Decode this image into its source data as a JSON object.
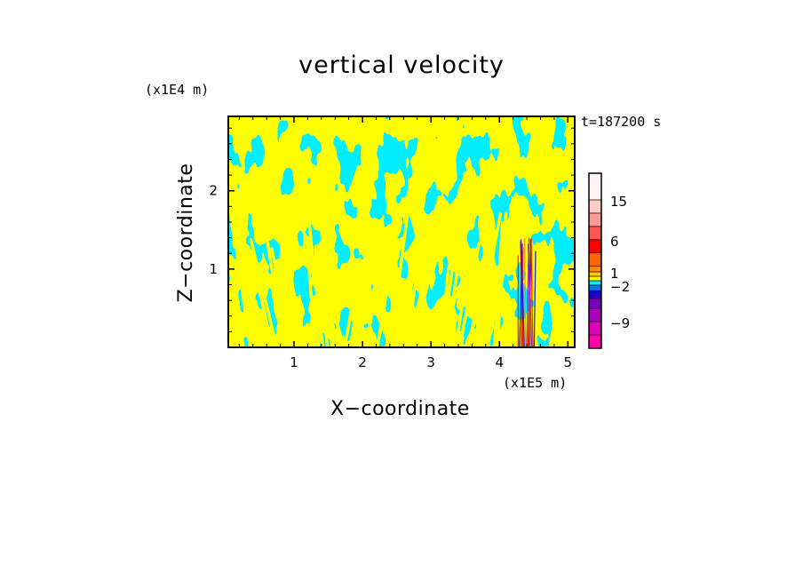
{
  "chart_data": {
    "type": "heatmap",
    "title": "vertical velocity",
    "xlabel": "X−coordinate",
    "ylabel": "Z−coordinate",
    "x_unit_label": "(x1E5 m)",
    "y_unit_label": "(x1E4 m)",
    "time_label": "t=187200 s",
    "xlim": [
      0.04,
      5.1
    ],
    "ylim": [
      0,
      2.95
    ],
    "x_ticks": [
      1,
      2,
      3,
      4,
      5
    ],
    "x_tick_labels": [
      "1",
      "2",
      "3",
      "4",
      "5"
    ],
    "y_ticks": [
      1,
      2
    ],
    "y_tick_labels": [
      "1",
      "2"
    ],
    "field_colors": {
      "positive": "#ffff00",
      "negative": "#00eeff"
    },
    "convective_core": {
      "x_center": 4.4,
      "z_top": 1.4,
      "colors": [
        "#ff0000",
        "#0000ff",
        "#ff8800",
        "#8800cc"
      ]
    },
    "colorbar": {
      "levels": [
        -12,
        -9,
        -6,
        -4,
        -3,
        -2,
        -1,
        0,
        1,
        2,
        4,
        6,
        8,
        10,
        15,
        20
      ],
      "colors": [
        "#ff00aa",
        "#dd00bb",
        "#aa00bb",
        "#7700bb",
        "#2200cc",
        "#0077ff",
        "#00eeff",
        "#ffff00",
        "#ffcc00",
        "#ff8800",
        "#ff6600",
        "#ff0000",
        "#ff5555",
        "#ff9999",
        "#ffcccc",
        "#fff4f4"
      ],
      "labeled_values": [
        -9,
        -2,
        1,
        6,
        15
      ],
      "labels": [
        "−9",
        "−2",
        "1",
        "6",
        "15"
      ]
    }
  }
}
